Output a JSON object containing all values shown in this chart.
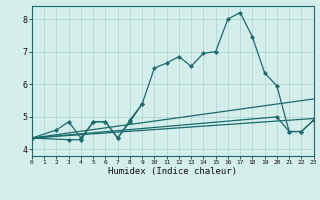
{
  "bg_color": "#d4eeec",
  "grid_color": "#aad4d0",
  "line_color": "#1a6b6a",
  "xlabel": "Humidex (Indice chaleur)",
  "xlim": [
    0,
    23
  ],
  "ylim": [
    3.8,
    8.4
  ],
  "xticks": [
    0,
    1,
    2,
    3,
    4,
    5,
    6,
    7,
    8,
    9,
    10,
    11,
    12,
    13,
    14,
    15,
    16,
    17,
    18,
    19,
    20,
    21,
    22,
    23
  ],
  "yticks": [
    4,
    5,
    6,
    7,
    8
  ],
  "line1_x": [
    0,
    2,
    3,
    4,
    5,
    6,
    7,
    8,
    9,
    10,
    11,
    12,
    13,
    14,
    15,
    16,
    17,
    18,
    19,
    20,
    21,
    22,
    23
  ],
  "line1_y": [
    4.35,
    4.6,
    4.85,
    4.35,
    4.85,
    4.85,
    4.35,
    4.9,
    5.4,
    6.5,
    6.65,
    6.85,
    6.55,
    6.95,
    7.0,
    8.0,
    8.2,
    7.45,
    6.35,
    5.95,
    4.55,
    4.55,
    4.9
  ],
  "line2_x": [
    0,
    3,
    4,
    5,
    6,
    7,
    8,
    9
  ],
  "line2_y": [
    4.35,
    4.3,
    4.3,
    4.85,
    4.85,
    4.35,
    4.85,
    5.4
  ],
  "line3_x": [
    0,
    23
  ],
  "line3_y": [
    4.35,
    4.95
  ],
  "line4_x": [
    0,
    23
  ],
  "line4_y": [
    4.35,
    5.55
  ],
  "line5_x": [
    0,
    20,
    21,
    22,
    23
  ],
  "line5_y": [
    4.35,
    5.0,
    4.55,
    4.55,
    4.9
  ]
}
